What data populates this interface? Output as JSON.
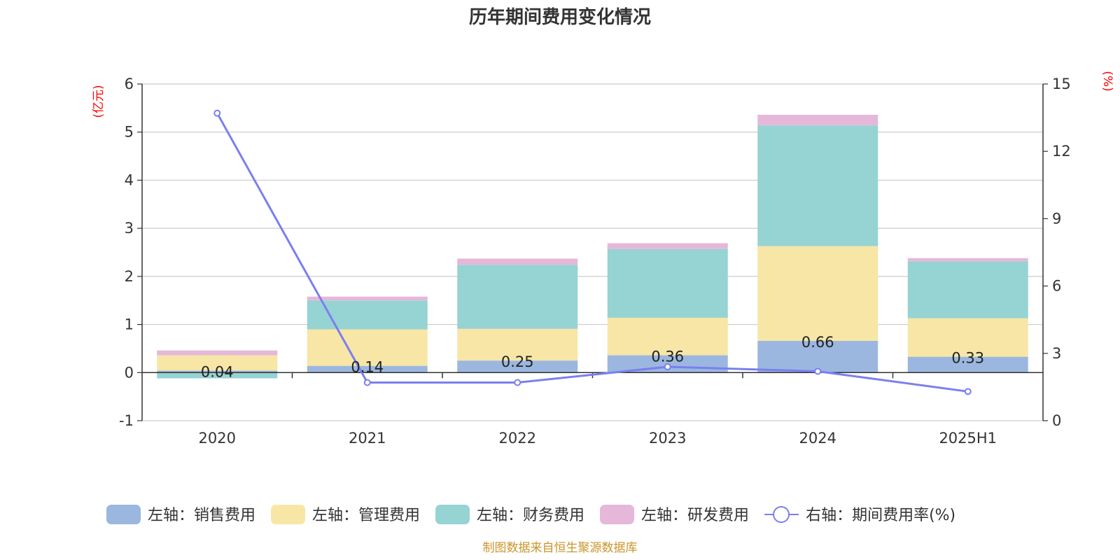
{
  "chart_data": {
    "type": "bar",
    "title": "历年期间费用变化情况",
    "categories": [
      "2020",
      "2021",
      "2022",
      "2023",
      "2024",
      "2025H1"
    ],
    "left_axis": {
      "unit": "(亿元)",
      "ylim": [
        -1,
        6
      ],
      "ticks": [
        "-1",
        "0",
        "1",
        "2",
        "3",
        "4",
        "5",
        "6"
      ]
    },
    "right_axis": {
      "unit": "(%)",
      "ylim": [
        0,
        15
      ],
      "ticks": [
        "0",
        "3",
        "6",
        "9",
        "12",
        "15"
      ]
    },
    "series": [
      {
        "name": "左轴：销售费用",
        "axis": "left",
        "type": "stacked-bar",
        "color": "#9bb7e0",
        "values": [
          0.04,
          0.14,
          0.25,
          0.36,
          0.66,
          0.33
        ],
        "labels": [
          "0.04",
          "0.14",
          "0.25",
          "0.36",
          "0.66",
          "0.33"
        ]
      },
      {
        "name": "左轴：管理费用",
        "axis": "left",
        "type": "stacked-bar",
        "color": "#f7e6a6",
        "values": [
          0.32,
          0.76,
          0.66,
          0.78,
          1.97,
          0.8
        ]
      },
      {
        "name": "左轴：财务费用",
        "axis": "left",
        "type": "stacked-bar",
        "color": "#96d3d3",
        "values": [
          -0.12,
          0.6,
          1.33,
          1.43,
          2.51,
          1.18
        ]
      },
      {
        "name": "左轴：研发费用",
        "axis": "left",
        "type": "stacked-bar",
        "color": "#e5b8d9",
        "values": [
          0.1,
          0.08,
          0.13,
          0.12,
          0.22,
          0.07
        ]
      },
      {
        "name": "右轴：期间费用率(%)",
        "axis": "right",
        "type": "line",
        "color": "#7b7fef",
        "values": [
          13.7,
          1.7,
          1.7,
          2.4,
          2.2,
          1.3
        ]
      }
    ],
    "grid": true,
    "legend_position": "bottom"
  },
  "footer": {
    "source": "制图数据来自恒生聚源数据库"
  }
}
